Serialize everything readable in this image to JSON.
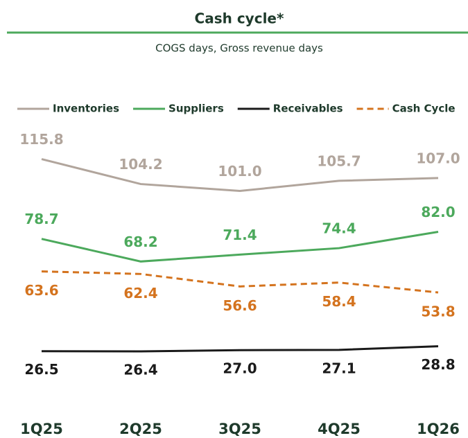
{
  "chart_data": {
    "type": "line",
    "title": "Cash cycle*",
    "subtitle": "COGS days, Gross revenue days",
    "categories": [
      "1Q25",
      "2Q25",
      "3Q25",
      "4Q25",
      "1Q26"
    ],
    "ylim": [
      0,
      125
    ],
    "series": [
      {
        "name": "Inventories",
        "color": "#b1a59c",
        "values": [
          115.8,
          104.2,
          101.0,
          105.7,
          107.0
        ],
        "value_labels": [
          "115.8",
          "104.2",
          "101.0",
          "105.7",
          "107.0"
        ]
      },
      {
        "name": "Suppliers",
        "color": "#4ca95c",
        "values": [
          78.7,
          68.2,
          71.4,
          74.4,
          82.0
        ],
        "value_labels": [
          "78.7",
          "68.2",
          "71.4",
          "74.4",
          "82.0"
        ]
      },
      {
        "name": "Receivables",
        "color": "#1a1a1a",
        "values": [
          26.5,
          26.4,
          27.0,
          27.1,
          28.8
        ],
        "value_labels": [
          "26.5",
          "26.4",
          "27.0",
          "27.1",
          "28.8"
        ]
      },
      {
        "name": "Cash Cycle",
        "color": "#d4731e",
        "style": "dashed",
        "values": [
          63.6,
          62.4,
          56.6,
          58.4,
          53.8
        ],
        "value_labels": [
          "63.6",
          "62.4",
          "56.6",
          "58.4",
          "53.8"
        ]
      }
    ]
  }
}
